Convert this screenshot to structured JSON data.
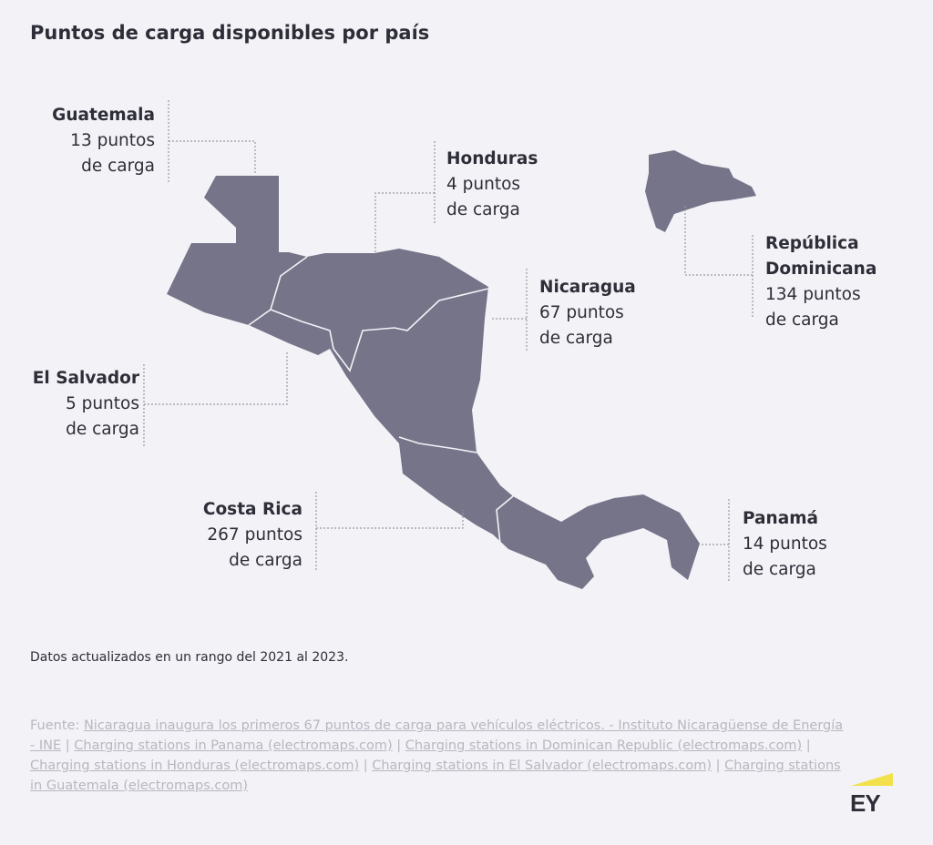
{
  "title": "Puntos de carga disponibles por país",
  "map_fill": "#767489",
  "countries": [
    {
      "name": "Guatemala",
      "count_text": "13 puntos",
      "unit": "de carga",
      "value": 13
    },
    {
      "name": "Honduras",
      "count_text": "4 puntos",
      "unit": "de carga",
      "value": 4
    },
    {
      "name_line1": "República",
      "name_line2": "Dominicana",
      "count_text": "134 puntos",
      "unit": "de carga",
      "value": 134
    },
    {
      "name": "Nicaragua",
      "count_text": "67 puntos",
      "unit": "de carga",
      "value": 67
    },
    {
      "name": "El Salvador",
      "count_text": "5 puntos",
      "unit": "de carga",
      "value": 5
    },
    {
      "name": "Costa Rica",
      "count_text": "267 puntos",
      "unit": "de carga",
      "value": 267
    },
    {
      "name": "Panamá",
      "count_text": "14 puntos",
      "unit": "de carga",
      "value": 14
    }
  ],
  "note": "Datos actualizados en un rango del 2021 al 2023.",
  "source": {
    "prefix": "Fuente: ",
    "links": [
      "Nicaragua inaugura los primeros 67 puntos de carga para vehículos eléctricos. - Instituto Nicaragüense de Energía - INE",
      "Charging stations in Panama (electromaps.com)",
      "Charging stations in Dominican Republic (electromaps.com)",
      "Charging stations in Honduras (electromaps.com)",
      "Charging stations in El Salvador (electromaps.com)",
      "Charging stations in Guatemala (electromaps.com)"
    ],
    "separator": " | "
  },
  "logo": "EY"
}
